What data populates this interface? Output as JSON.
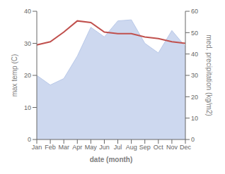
{
  "chart_data": {
    "type": "line",
    "categories": [
      "Jan",
      "Feb",
      "Mar",
      "Apr",
      "May",
      "Jun",
      "Jul",
      "Aug",
      "Sep",
      "Oct",
      "Nov",
      "Dec"
    ],
    "xlabel": "date (month)",
    "ylabel": "max temp (C)",
    "y2label": "med. precipitation (kg/m2)",
    "series": [
      {
        "type": "area",
        "axis": "y2",
        "color": "#b8c8e8",
        "values": [
          30.0,
          25.5,
          28.5,
          39.0,
          52.5,
          48.0,
          55.5,
          56.0,
          45.0,
          40.5,
          51.0,
          43.5
        ]
      },
      {
        "type": "line",
        "axis": "y",
        "color": "#c0504d",
        "values": [
          29.5,
          30.5,
          33.5,
          37.0,
          36.5,
          33.5,
          33.0,
          33.0,
          32.0,
          31.5,
          30.5,
          30.0
        ]
      }
    ],
    "ylim": [
      0,
      40
    ],
    "yticks": [
      0,
      10,
      20,
      30,
      40
    ],
    "y2lim": [
      0,
      60
    ],
    "y2ticks": [
      0,
      10,
      20,
      30,
      40,
      50,
      60
    ],
    "grid": false,
    "legend": false
  }
}
